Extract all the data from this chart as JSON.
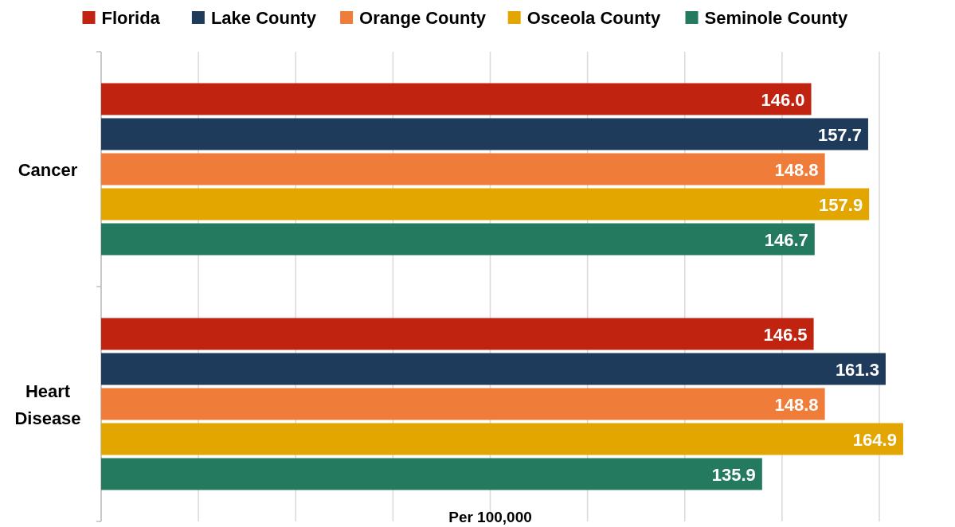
{
  "chart_data": {
    "type": "bar",
    "orientation": "horizontal",
    "xlabel": "Per 100,000",
    "categories": [
      "Cancer",
      "Heart Disease"
    ],
    "series": [
      {
        "name": "Florida",
        "color": "#c0230f",
        "values": [
          146.0,
          146.5
        ],
        "value_labels": [
          "146.0",
          "146.5"
        ]
      },
      {
        "name": "Lake County",
        "color": "#1f3b5c",
        "values": [
          157.7,
          161.3
        ],
        "value_labels": [
          "157.7",
          "161.3"
        ]
      },
      {
        "name": "Orange County",
        "color": "#f07c3a",
        "values": [
          148.8,
          148.8
        ],
        "value_labels": [
          "148.8",
          "148.8"
        ]
      },
      {
        "name": "Osceola County",
        "color": "#e3a500",
        "values": [
          157.9,
          164.9
        ],
        "value_labels": [
          "157.9",
          "164.9"
        ]
      },
      {
        "name": "Seminole County",
        "color": "#237a5e",
        "values": [
          146.7,
          135.9
        ],
        "value_labels": [
          "146.7",
          "135.9"
        ]
      }
    ],
    "xticks": [
      {
        "value": 0,
        "label": null
      },
      {
        "value": 20,
        "label": null
      },
      {
        "value": 40,
        "label": null
      },
      {
        "value": 60,
        "label": null
      },
      {
        "value": 80,
        "label": null
      },
      {
        "value": 100,
        "label": null
      },
      {
        "value": 120,
        "label": null
      },
      {
        "value": 140,
        "label": null
      },
      {
        "value": 160,
        "label": null
      }
    ],
    "tick_labels": "y",
    "grid": "x",
    "legend": "top"
  }
}
